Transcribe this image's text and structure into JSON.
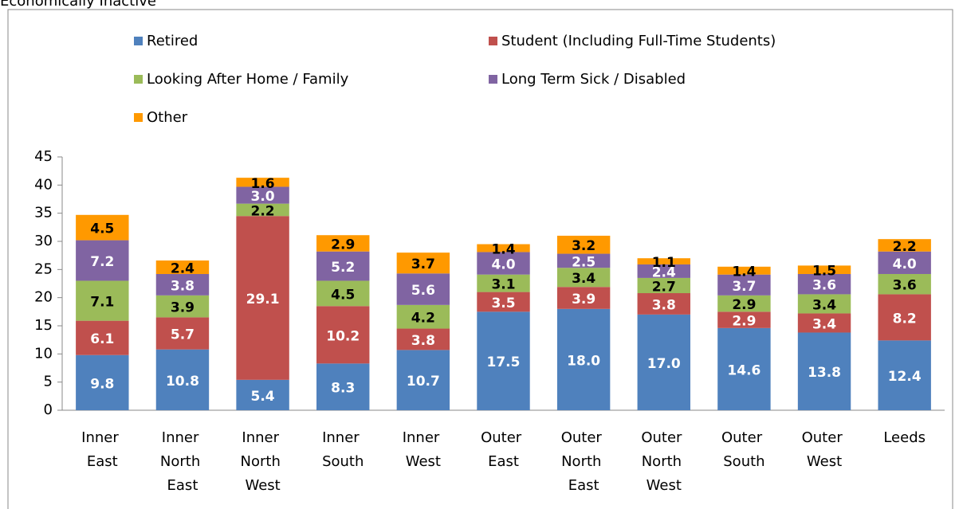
{
  "chart_data": {
    "type": "stacked_bar",
    "title": "Economically Inactive",
    "categories": [
      "Inner East",
      "Inner North East",
      "Inner North West",
      "Inner South",
      "Inner West",
      "Outer East",
      "Outer North East",
      "Outer North West",
      "Outer South",
      "Outer West",
      "Leeds"
    ],
    "series": [
      {
        "name": "Retired",
        "color": "#4F81BD",
        "values": [
          9.8,
          10.8,
          5.4,
          8.3,
          10.7,
          17.5,
          18.0,
          17.0,
          14.6,
          13.8,
          12.4
        ],
        "value_labels": [
          "9.8",
          "10.8",
          "5.4",
          "8.3",
          "10.7",
          "17.5",
          "18.0",
          "17.0",
          "14.6",
          "13.8",
          "12.4"
        ]
      },
      {
        "name": "Student (Including Full-Time Students)",
        "color": "#C0504D",
        "values": [
          6.1,
          5.7,
          29.1,
          10.2,
          3.8,
          3.5,
          3.9,
          3.8,
          2.9,
          3.4,
          8.2
        ],
        "value_labels": [
          "6.1",
          "5.7",
          "29.1",
          "10.2",
          "3.8",
          "3.5",
          "3.9",
          "3.8",
          "2.9",
          "3.4",
          "8.2"
        ]
      },
      {
        "name": "Looking After Home / Family",
        "color": "#9BBB59",
        "values": [
          7.1,
          3.9,
          2.2,
          4.5,
          4.2,
          3.1,
          3.4,
          2.7,
          2.9,
          3.4,
          3.6
        ],
        "value_labels": [
          "7.1",
          "3.9",
          "2.2",
          "4.5",
          "4.2",
          "3.1",
          "3.4",
          "2.7",
          "2.9",
          "3.4",
          "3.6"
        ]
      },
      {
        "name": "Long Term Sick / Disabled",
        "color": "#8064A2",
        "values": [
          7.2,
          3.8,
          3.0,
          5.2,
          5.6,
          4.0,
          2.5,
          2.4,
          3.7,
          3.6,
          4.0
        ],
        "value_labels": [
          "7.2",
          "3.8",
          "3.0",
          "5.2",
          "5.6",
          "4.0",
          "2.5",
          "2.4",
          "3.7",
          "3.6",
          "4.0"
        ]
      },
      {
        "name": "Other",
        "color": "#FF9900",
        "values": [
          4.5,
          2.4,
          1.6,
          2.9,
          3.7,
          1.4,
          3.2,
          1.1,
          1.4,
          1.5,
          2.2
        ],
        "value_labels": [
          "4.5",
          "2.4",
          "1.6",
          "2.9",
          "3.7",
          "1.4",
          "3.2",
          "1.1",
          "1.4",
          "1.5",
          "2.2"
        ]
      }
    ],
    "ylim": [
      0,
      45
    ],
    "yticks": [
      0,
      5,
      10,
      15,
      20,
      25,
      30,
      35,
      40,
      45
    ],
    "grid": false,
    "legend": "top"
  }
}
